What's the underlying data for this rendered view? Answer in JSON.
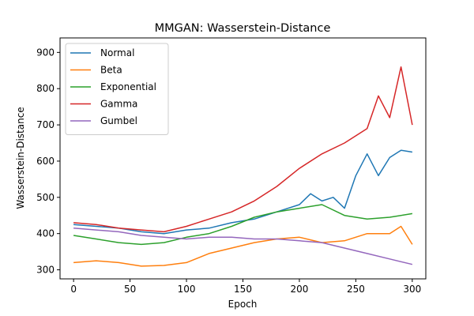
{
  "chart_data": {
    "type": "line",
    "title": "MMGAN: Wasserstein-Distance",
    "xlabel": "Epoch",
    "ylabel": "Wasserstein-Distance",
    "xlim": [
      -12,
      312
    ],
    "ylim": [
      275,
      940
    ],
    "xticks": [
      0,
      50,
      100,
      150,
      200,
      250,
      300
    ],
    "yticks": [
      300,
      400,
      500,
      600,
      700,
      800,
      900
    ],
    "grid": false,
    "legend_position": "top-left",
    "series": [
      {
        "name": "Normal",
        "color": "#1f77b4",
        "x": [
          0,
          20,
          40,
          60,
          80,
          100,
          120,
          140,
          160,
          180,
          200,
          210,
          220,
          230,
          240,
          250,
          260,
          270,
          280,
          290,
          300
        ],
        "y": [
          425,
          420,
          415,
          405,
          400,
          410,
          415,
          430,
          440,
          460,
          480,
          510,
          490,
          500,
          470,
          560,
          620,
          560,
          610,
          630,
          625
        ]
      },
      {
        "name": "Beta",
        "color": "#ff7f0e",
        "x": [
          0,
          20,
          40,
          60,
          80,
          100,
          120,
          140,
          160,
          180,
          200,
          220,
          240,
          260,
          280,
          290,
          300
        ],
        "y": [
          320,
          325,
          320,
          310,
          312,
          320,
          345,
          360,
          375,
          385,
          390,
          375,
          380,
          400,
          400,
          420,
          370
        ]
      },
      {
        "name": "Exponential",
        "color": "#2ca02c",
        "x": [
          0,
          20,
          40,
          60,
          80,
          100,
          120,
          140,
          160,
          180,
          200,
          220,
          240,
          260,
          280,
          300
        ],
        "y": [
          395,
          385,
          375,
          370,
          375,
          390,
          400,
          420,
          445,
          460,
          470,
          480,
          450,
          440,
          445,
          455
        ]
      },
      {
        "name": "Gamma",
        "color": "#d62728",
        "x": [
          0,
          20,
          40,
          60,
          80,
          100,
          120,
          140,
          160,
          180,
          200,
          220,
          240,
          260,
          270,
          280,
          290,
          300
        ],
        "y": [
          430,
          425,
          415,
          410,
          405,
          420,
          440,
          460,
          490,
          530,
          580,
          620,
          650,
          690,
          780,
          720,
          860,
          700
        ]
      },
      {
        "name": "Gumbel",
        "color": "#9467bd",
        "x": [
          0,
          20,
          40,
          60,
          80,
          100,
          120,
          140,
          160,
          180,
          200,
          220,
          240,
          260,
          280,
          300
        ],
        "y": [
          415,
          410,
          405,
          395,
          390,
          385,
          390,
          390,
          385,
          385,
          380,
          375,
          360,
          345,
          330,
          315
        ]
      }
    ]
  }
}
